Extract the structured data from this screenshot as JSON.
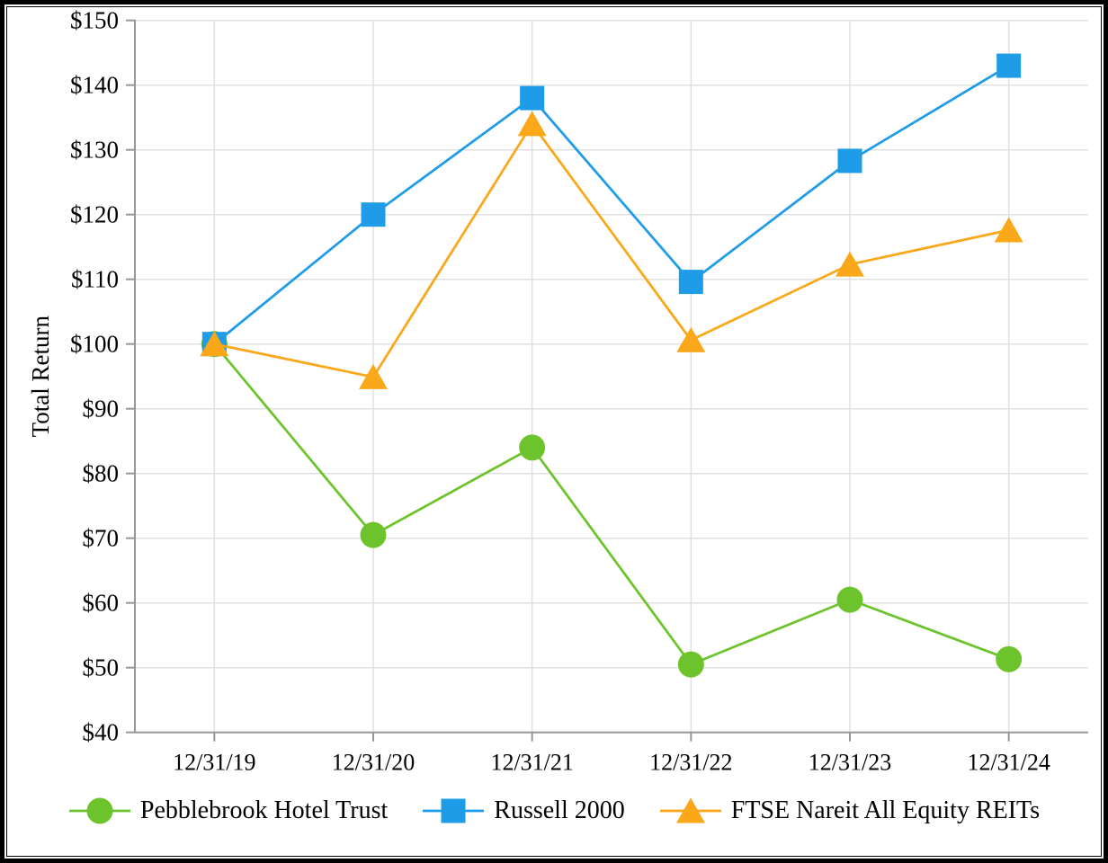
{
  "chart_data": {
    "type": "line",
    "title": "",
    "xlabel": "",
    "ylabel": "Total Return",
    "categories": [
      "12/31/19",
      "12/31/20",
      "12/31/21",
      "12/31/22",
      "12/31/23",
      "12/31/24"
    ],
    "series": [
      {
        "name": "Pebblebrook Hotel Trust",
        "marker": "circle",
        "color": "#6cc32b",
        "values": [
          100,
          70.5,
          84,
          50.5,
          60.5,
          51.3
        ]
      },
      {
        "name": "Russell 2000",
        "marker": "square",
        "color": "#1e9ce8",
        "values": [
          100,
          120,
          138,
          109.6,
          128.3,
          143
        ]
      },
      {
        "name": "FTSE Nareit All Equity REITs",
        "marker": "triangle",
        "color": "#faa71a",
        "values": [
          100,
          94.9,
          134,
          100.6,
          112.3,
          117.6
        ]
      }
    ],
    "ylim": [
      40,
      150
    ],
    "y_tick_step": 10,
    "y_tick_labels": [
      "$40",
      "$50",
      "$60",
      "$70",
      "$80",
      "$90",
      "$100",
      "$110",
      "$120",
      "$130",
      "$140",
      "$150"
    ],
    "grid": true,
    "legend_position": "bottom",
    "axis_color": "#969696",
    "grid_color": "#e0e0e0",
    "text_color": "#000000"
  }
}
